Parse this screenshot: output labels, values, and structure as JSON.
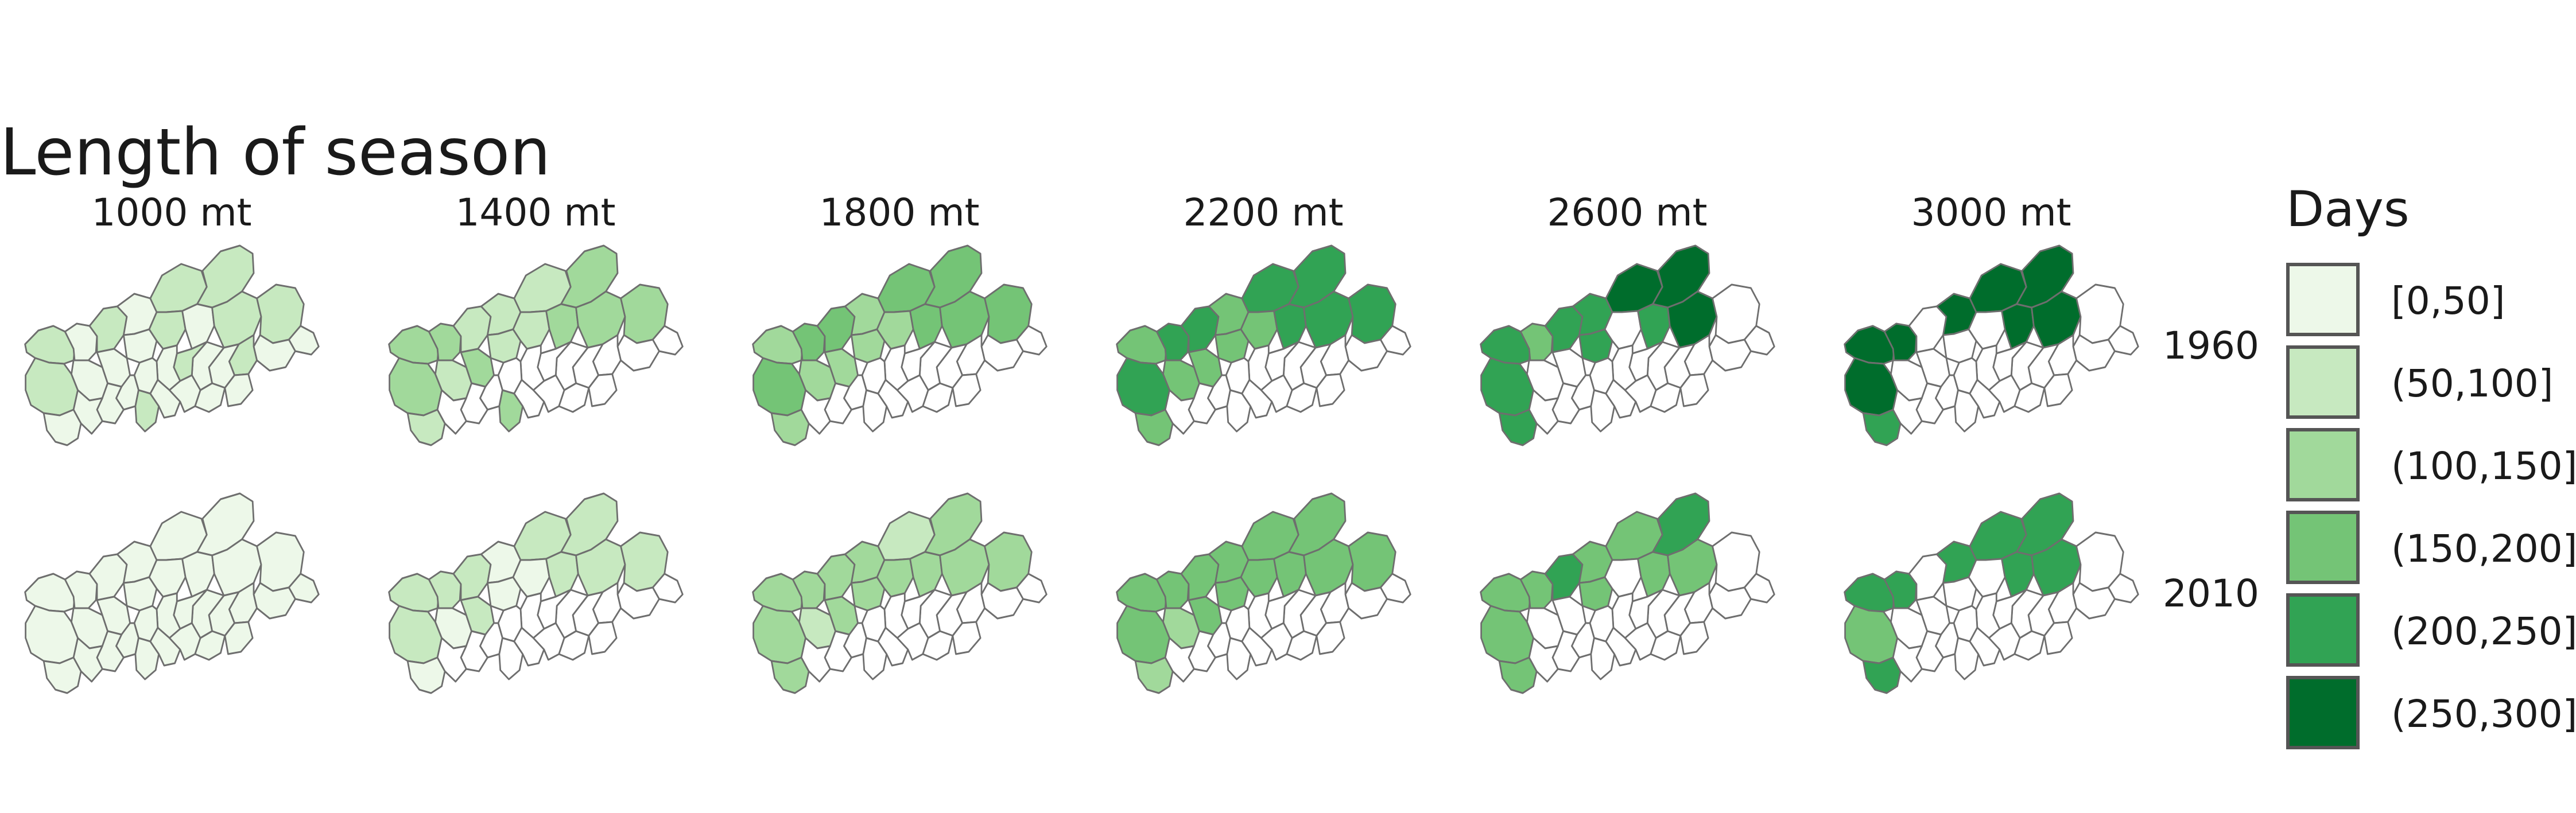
{
  "title": "Length of season",
  "columns": [
    "1000 mt",
    "1400 mt",
    "1800 mt",
    "2200 mt",
    "2600 mt",
    "3000 mt"
  ],
  "rows": [
    "1960",
    "2010"
  ],
  "legend": {
    "title": "Days",
    "items": [
      {
        "label": "[0,50]",
        "color": "#edf8e9"
      },
      {
        "label": "(50,100]",
        "color": "#c7e9c0"
      },
      {
        "label": "(100,150]",
        "color": "#a1d99b"
      },
      {
        "label": "(150,200]",
        "color": "#74c476"
      },
      {
        "label": "(200,250]",
        "color": "#31a354"
      },
      {
        "label": "(250,300]",
        "color": "#006d2c"
      }
    ]
  },
  "map_data": {
    "regions": [
      "r1",
      "r2",
      "r3",
      "r4",
      "r5",
      "r6",
      "r7",
      "r8",
      "r9",
      "r10",
      "r11",
      "r12",
      "r13",
      "r14",
      "r15",
      "r16",
      "r17",
      "r18",
      "r19",
      "r20",
      "r21",
      "r22",
      "r23",
      "r24",
      "r25",
      "r26",
      "r27",
      "r28",
      "r29",
      "r30",
      "r31"
    ],
    "class_values_note": "class index 0-5 per region, -1 = no value",
    "panels": {
      "1960": [
        [
          1,
          1,
          0,
          0,
          0,
          1,
          0,
          0,
          0,
          1,
          1,
          1,
          0,
          1,
          1,
          0,
          0,
          1,
          0,
          0,
          1,
          0,
          0,
          0,
          0,
          0,
          1,
          0,
          0,
          0,
          0
        ],
        [
          2,
          2,
          1,
          2,
          1,
          1,
          2,
          1,
          1,
          1,
          2,
          1,
          2,
          2,
          2,
          -1,
          -1,
          -1,
          -1,
          -1,
          -1,
          -1,
          -1,
          -1,
          -1,
          -1,
          2,
          -1,
          -1,
          -1,
          -1
        ],
        [
          2,
          3,
          2,
          3,
          2,
          3,
          2,
          2,
          2,
          3,
          3,
          2,
          3,
          3,
          3,
          -1,
          -1,
          -1,
          -1,
          -1,
          -1,
          -1,
          -1,
          -1,
          -1,
          -1,
          -1,
          -1,
          -1,
          -1,
          -1
        ],
        [
          3,
          4,
          3,
          4,
          3,
          4,
          3,
          3,
          3,
          4,
          4,
          3,
          4,
          4,
          4,
          -1,
          -1,
          -1,
          -1,
          -1,
          -1,
          -1,
          -1,
          -1,
          -1,
          -1,
          -1,
          -1,
          -1,
          -1,
          -1
        ],
        [
          4,
          4,
          4,
          3,
          -1,
          4,
          -1,
          4,
          4,
          5,
          5,
          -1,
          4,
          5,
          -1,
          -1,
          -1,
          -1,
          -1,
          -1,
          -1,
          -1,
          -1,
          -1,
          -1,
          -1,
          -1,
          -1,
          -1,
          -1,
          -1
        ],
        [
          5,
          5,
          4,
          5,
          -1,
          -1,
          -1,
          5,
          -1,
          5,
          5,
          -1,
          5,
          5,
          -1,
          -1,
          -1,
          -1,
          -1,
          -1,
          -1,
          -1,
          -1,
          -1,
          -1,
          -1,
          -1,
          -1,
          -1,
          -1,
          -1
        ]
      ],
      "2010": [
        [
          0,
          0,
          0,
          0,
          0,
          0,
          0,
          0,
          0,
          0,
          0,
          0,
          0,
          0,
          0,
          0,
          0,
          0,
          0,
          0,
          0,
          0,
          0,
          0,
          0,
          0,
          0,
          0,
          0,
          0,
          0
        ],
        [
          1,
          1,
          0,
          1,
          0,
          1,
          1,
          0,
          0,
          1,
          1,
          0,
          1,
          1,
          1,
          -1,
          -1,
          -1,
          -1,
          -1,
          -1,
          -1,
          -1,
          -1,
          -1,
          -1,
          -1,
          -1,
          -1,
          -1,
          -1
        ],
        [
          2,
          2,
          2,
          2,
          1,
          2,
          2,
          2,
          2,
          1,
          2,
          2,
          2,
          2,
          2,
          -1,
          -1,
          -1,
          -1,
          -1,
          -1,
          -1,
          -1,
          -1,
          -1,
          -1,
          -1,
          -1,
          -1,
          -1,
          -1
        ],
        [
          3,
          3,
          2,
          3,
          2,
          3,
          3,
          3,
          3,
          3,
          3,
          3,
          3,
          3,
          3,
          -1,
          -1,
          -1,
          -1,
          -1,
          -1,
          -1,
          -1,
          -1,
          -1,
          -1,
          -1,
          -1,
          -1,
          -1,
          -1
        ],
        [
          3,
          3,
          3,
          3,
          -1,
          4,
          -1,
          3,
          3,
          3,
          4,
          -1,
          3,
          3,
          -1,
          -1,
          -1,
          -1,
          -1,
          -1,
          -1,
          -1,
          -1,
          -1,
          -1,
          -1,
          -1,
          -1,
          -1,
          -1,
          -1
        ],
        [
          4,
          3,
          4,
          4,
          -1,
          -1,
          -1,
          4,
          -1,
          4,
          4,
          -1,
          4,
          4,
          -1,
          -1,
          -1,
          -1,
          -1,
          -1,
          -1,
          -1,
          -1,
          -1,
          -1,
          -1,
          -1,
          -1,
          -1,
          -1,
          -1
        ]
      ]
    }
  }
}
